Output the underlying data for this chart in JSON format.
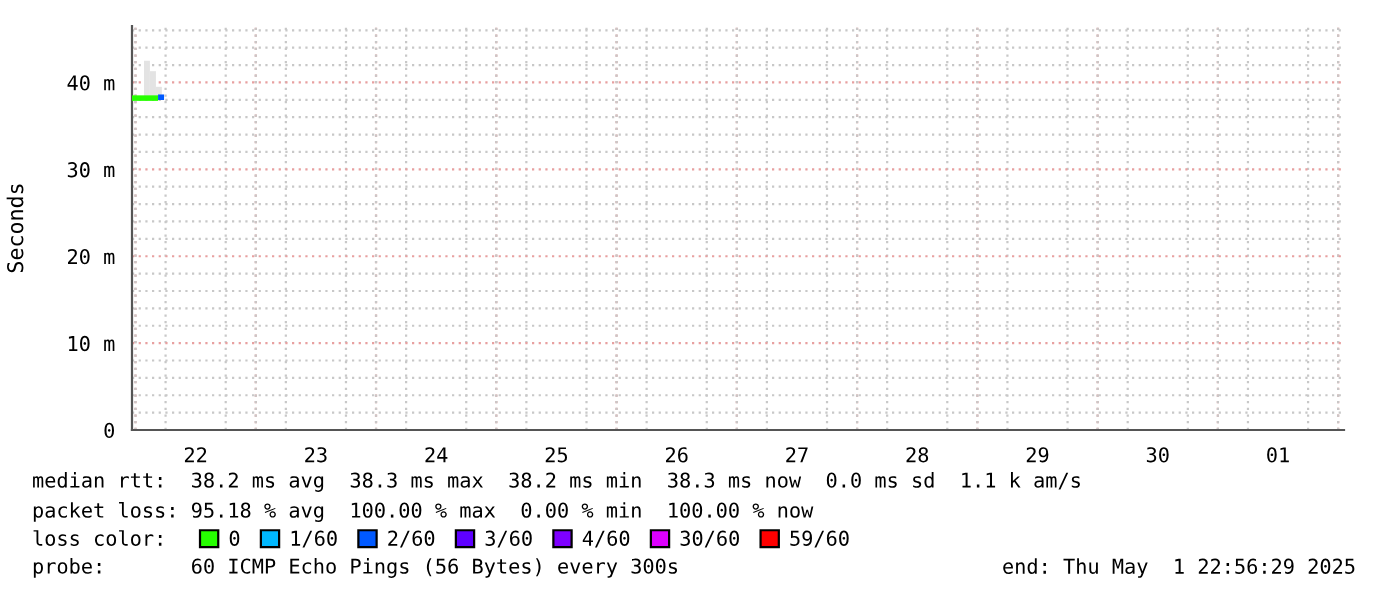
{
  "chart_data": {
    "type": "line",
    "ylabel": "Seconds",
    "xlim": [
      "2025-04-21T23:18",
      "2025-05-02T01:10"
    ],
    "xticks": [
      {
        "value": "2025-04-22T12:00",
        "label": "22"
      },
      {
        "value": "2025-04-23T12:00",
        "label": "23"
      },
      {
        "value": "2025-04-24T12:00",
        "label": "24"
      },
      {
        "value": "2025-04-25T12:00",
        "label": "25"
      },
      {
        "value": "2025-04-26T12:00",
        "label": "26"
      },
      {
        "value": "2025-04-27T12:00",
        "label": "27"
      },
      {
        "value": "2025-04-28T12:00",
        "label": "28"
      },
      {
        "value": "2025-04-29T12:00",
        "label": "29"
      },
      {
        "value": "2025-04-30T12:00",
        "label": "30"
      },
      {
        "value": "2025-05-01T12:00",
        "label": "01"
      }
    ],
    "ylim": [
      0,
      46.5
    ],
    "yticks": [
      0,
      {
        "value": 10,
        "label": "10 m"
      },
      {
        "value": 20,
        "label": "20 m"
      },
      {
        "value": 30,
        "label": "30 m"
      },
      {
        "value": 40,
        "label": "40 m"
      }
    ],
    "grid": true,
    "legend": "bottom",
    "legend_title": "loss color:",
    "series": [
      {
        "type": "bar",
        "color": "#e3e3e3",
        "x": [
          "2025-04-22T02:17",
          "2025-04-22T03:29",
          "2025-04-22T04:40"
        ],
        "base": [
          38.2,
          38.2,
          38.3
        ],
        "values": [
          4.3,
          3.1,
          1.2
        ]
      },
      {
        "name": "0",
        "color": "#26ff00",
        "x": [
          "2025-04-21T23:18",
          "2025-04-22T04:30"
        ],
        "values": [
          38.2,
          38.2
        ]
      },
      {
        "name": "1/60",
        "color": "#00b8ff"
      },
      {
        "name": "2/60",
        "color": "#0059ff",
        "x": [
          "2025-04-22T04:30",
          "2025-04-22T05:42"
        ],
        "values": [
          38.3,
          38.3
        ]
      },
      {
        "name": "3/60",
        "color": "#5e00ff"
      },
      {
        "name": "4/60",
        "color": "#7e00ff"
      },
      {
        "name": "30/60",
        "color": "#dd00ff"
      },
      {
        "name": "59/60",
        "color": "#ff0000"
      }
    ],
    "annotations": [
      "median rtt:  38.2 ms avg  38.3 ms max  38.2 ms min  38.3 ms now  0.0 ms sd  1.1 k am/s",
      "packet loss: 95.18 % avg  100.00 % max  0.00 % min  100.00 % now",
      "probe:       60 ICMP Echo Pings (56 Bytes) every 300s",
      "end: Thu May  1 22:56:29 2025"
    ]
  }
}
